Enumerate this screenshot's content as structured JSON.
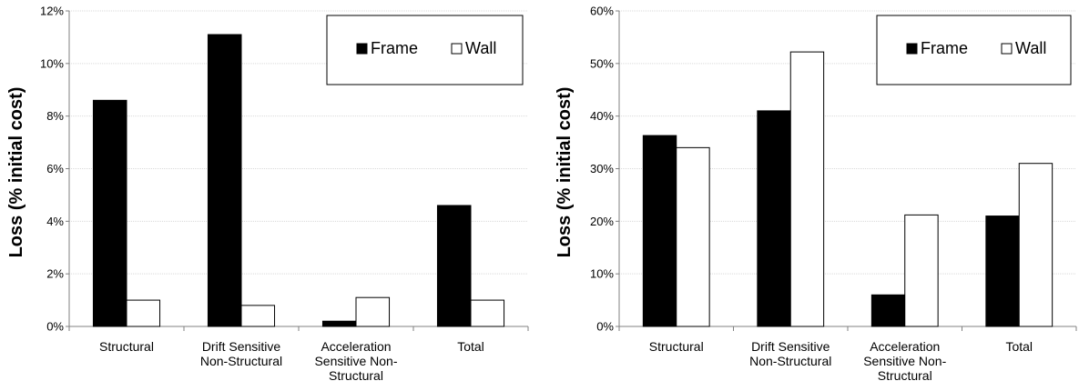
{
  "chart_data": [
    {
      "type": "bar",
      "categories": [
        [
          "Structural"
        ],
        [
          "Drift Sensitive",
          "Non-Structural"
        ],
        [
          "Acceleration",
          "Sensitive Non-",
          "Structural"
        ],
        [
          "Total"
        ]
      ],
      "series": [
        {
          "name": "Frame",
          "color": "#000000",
          "values": [
            8.6,
            11.1,
            0.2,
            4.6
          ]
        },
        {
          "name": "Wall",
          "color": "#ffffff",
          "values": [
            1.0,
            0.8,
            1.1,
            1.0
          ]
        }
      ],
      "ylabel": "Loss (% initial cost)",
      "xlabel": "",
      "ylim": [
        0,
        12
      ],
      "ytick_step": 2,
      "y_unit": "%",
      "grid": true,
      "legend": "top-right"
    },
    {
      "type": "bar",
      "categories": [
        [
          "Structural"
        ],
        [
          "Drift Sensitive",
          "Non-Structural"
        ],
        [
          "Acceleration",
          "Sensitive Non-",
          "Structural"
        ],
        [
          "Total"
        ]
      ],
      "series": [
        {
          "name": "Frame",
          "color": "#000000",
          "values": [
            36.3,
            41.0,
            6.0,
            21.0
          ]
        },
        {
          "name": "Wall",
          "color": "#ffffff",
          "values": [
            34.0,
            52.2,
            21.2,
            31.0
          ]
        }
      ],
      "ylabel": "Loss (% initial cost)",
      "xlabel": "",
      "ylim": [
        0,
        60
      ],
      "ytick_step": 10,
      "y_unit": "%",
      "grid": true,
      "legend": "top-right"
    }
  ]
}
